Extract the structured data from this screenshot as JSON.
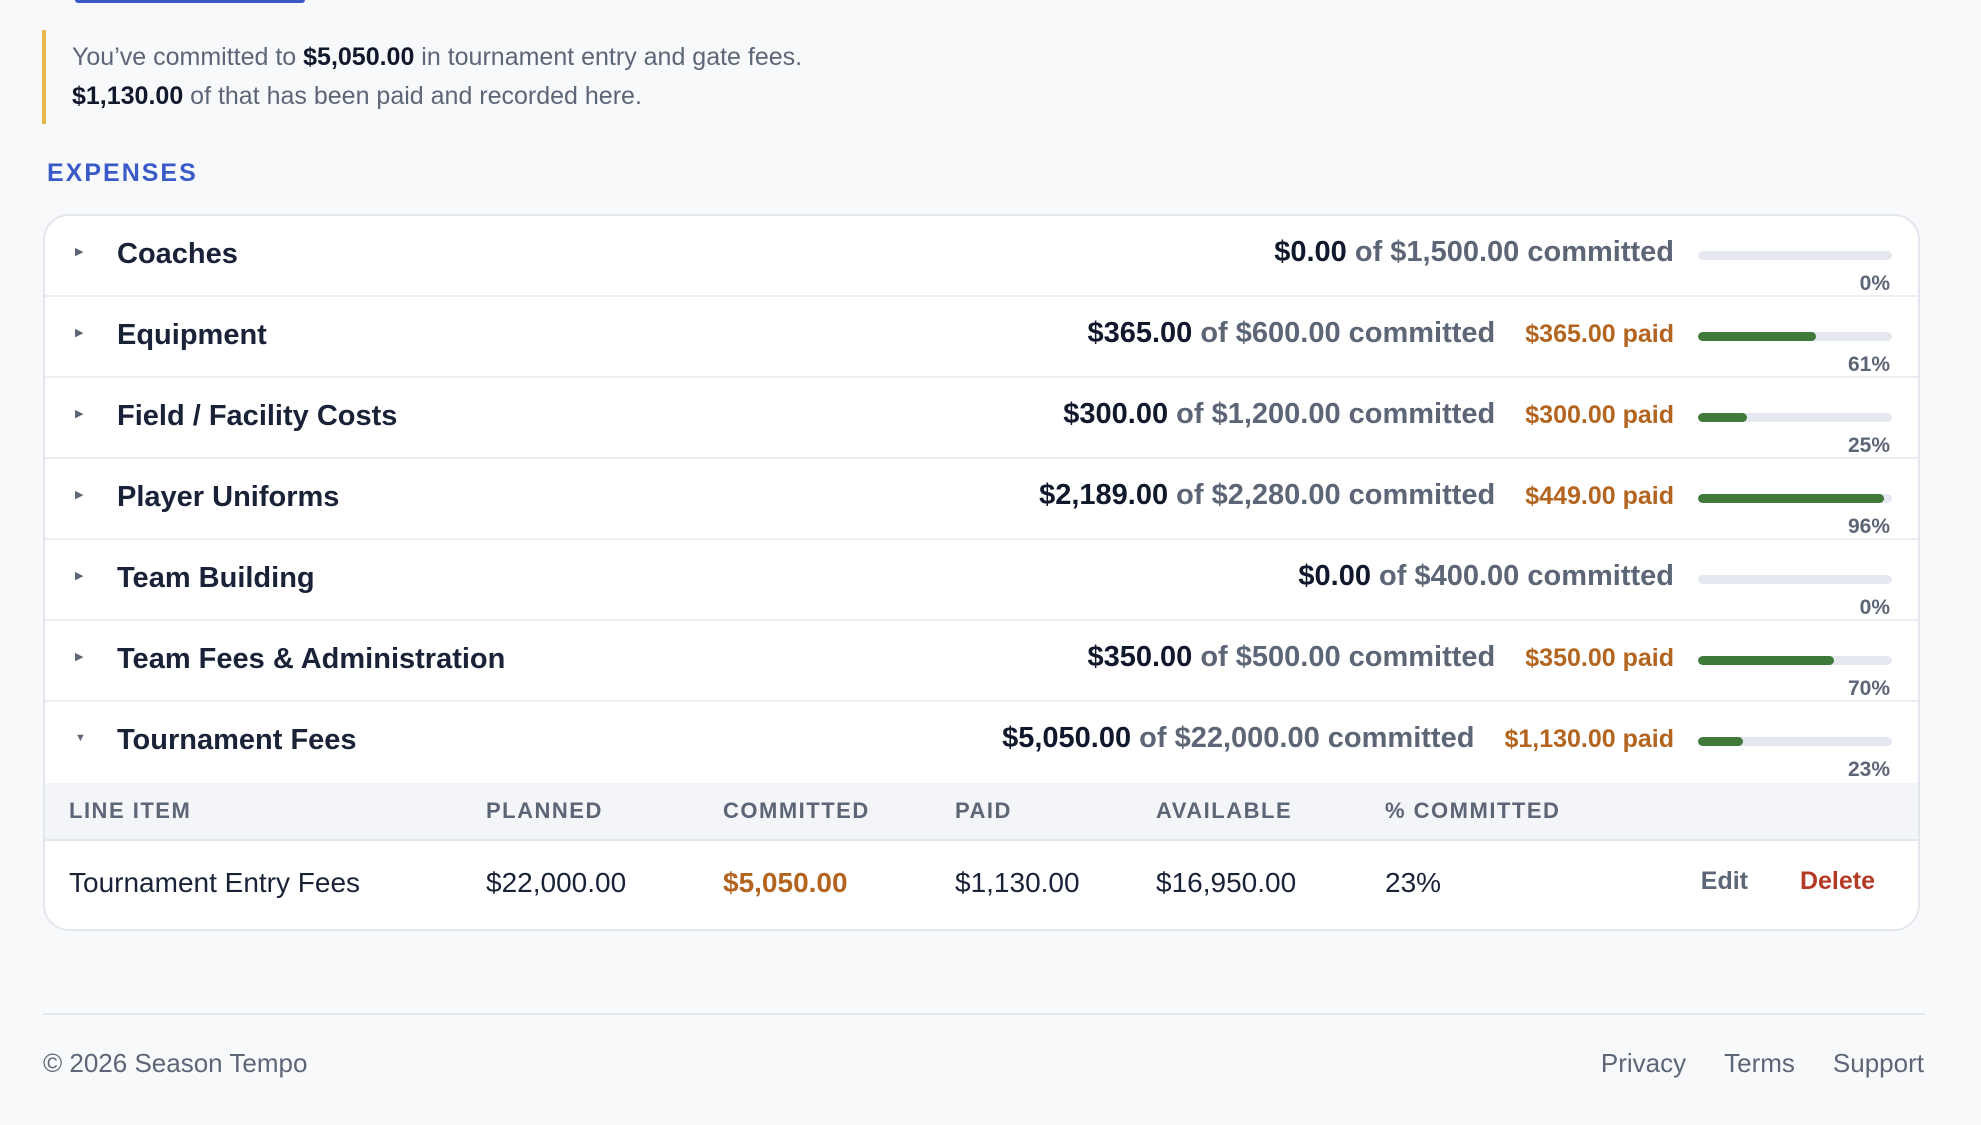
{
  "notice": {
    "line1_prefix": "You’ve committed to ",
    "committed_total": "$5,050.00",
    "line1_suffix": " in tournament entry and gate fees.",
    "paid_total": "$1,130.00",
    "line2_suffix": " of that has been paid and recorded here."
  },
  "section_title": "EXPENSES",
  "categories": [
    {
      "name": "Coaches",
      "committed": "$0.00",
      "of_text": "of $1,500.00 committed",
      "paid": "",
      "percent_label": "0%",
      "percent": 0
    },
    {
      "name": "Equipment",
      "committed": "$365.00",
      "of_text": "of $600.00 committed",
      "paid": "$365.00 paid",
      "percent_label": "61%",
      "percent": 61
    },
    {
      "name": "Field / Facility Costs",
      "committed": "$300.00",
      "of_text": "of $1,200.00 committed",
      "paid": "$300.00 paid",
      "percent_label": "25%",
      "percent": 25
    },
    {
      "name": "Player Uniforms",
      "committed": "$2,189.00",
      "of_text": "of $2,280.00 committed",
      "paid": "$449.00 paid",
      "percent_label": "96%",
      "percent": 96
    },
    {
      "name": "Team Building",
      "committed": "$0.00",
      "of_text": "of $400.00 committed",
      "paid": "",
      "percent_label": "0%",
      "percent": 0
    },
    {
      "name": "Team Fees & Administration",
      "committed": "$350.00",
      "of_text": "of $500.00 committed",
      "paid": "$350.00 paid",
      "percent_label": "70%",
      "percent": 70
    },
    {
      "name": "Tournament Fees",
      "committed": "$5,050.00",
      "of_text": "of $22,000.00 committed",
      "paid": "$1,130.00 paid",
      "percent_label": "23%",
      "percent": 23
    }
  ],
  "line_items": {
    "headers": [
      "LINE ITEM",
      "PLANNED",
      "COMMITTED",
      "PAID",
      "AVAILABLE",
      "% COMMITTED"
    ],
    "rows": [
      {
        "item": "Tournament Entry Fees",
        "planned": "$22,000.00",
        "committed": "$5,050.00",
        "paid": "$1,130.00",
        "available": "$16,950.00",
        "percent": "23%"
      }
    ],
    "edit_label": "Edit",
    "delete_label": "Delete"
  },
  "footer": {
    "copyright": "© 2026 Season Tempo",
    "links": [
      "Privacy",
      "Terms",
      "Support"
    ]
  },
  "colors": {
    "accent": "#3a5bc7",
    "notice_border": "#e8b64a",
    "paid": "#b3651f",
    "progress": "#3f7a3b",
    "delete": "#b53a25"
  }
}
